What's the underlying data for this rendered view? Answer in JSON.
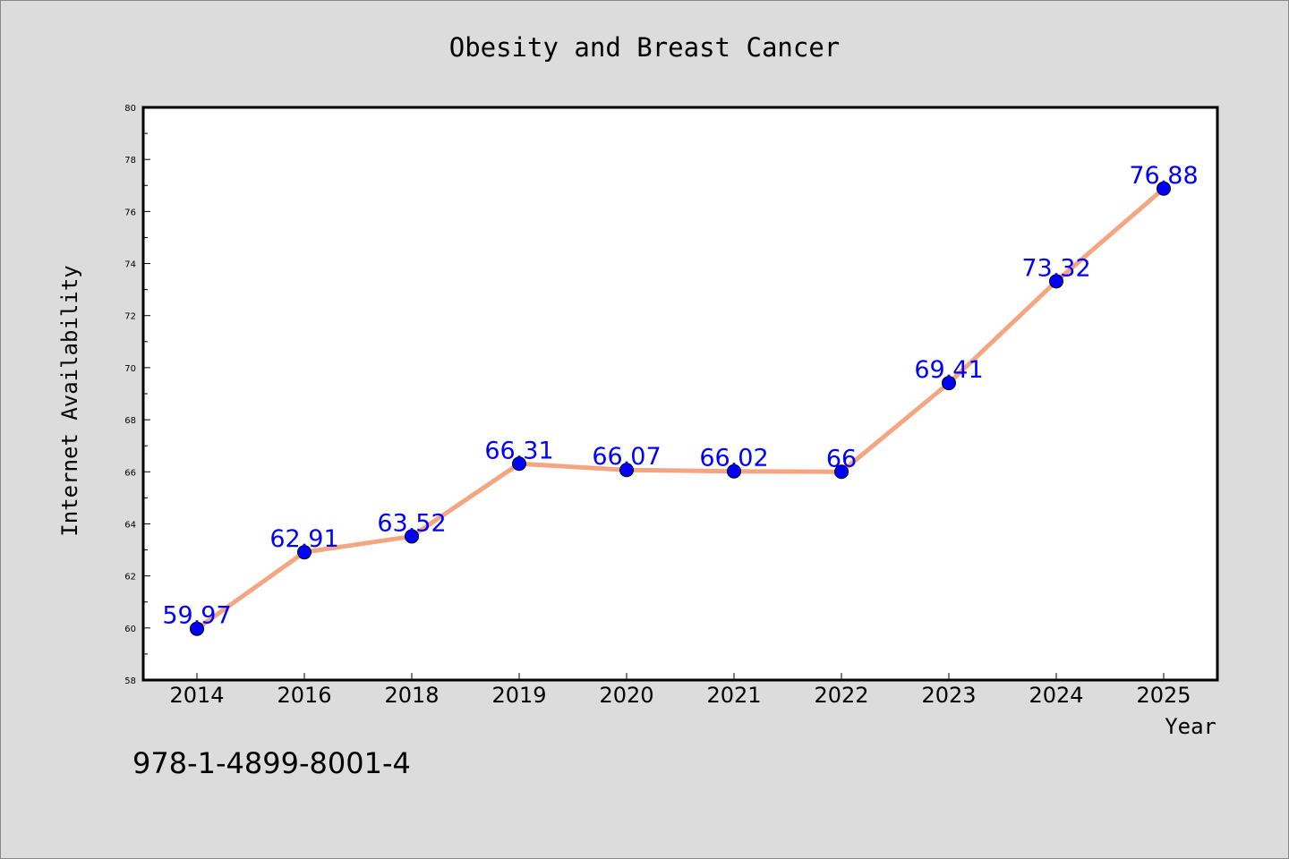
{
  "chart_data": {
    "type": "line",
    "title": "Obesity and Breast Cancer",
    "xlabel": "Year",
    "ylabel": "Internet Availability",
    "categories": [
      "2014",
      "2016",
      "2018",
      "2019",
      "2020",
      "2021",
      "2022",
      "2023",
      "2024",
      "2025"
    ],
    "series": [
      {
        "values": [
          59.97,
          62.91,
          63.52,
          66.31,
          66.07,
          66.02,
          66,
          69.41,
          73.32,
          76.88
        ],
        "labels": [
          "59.97",
          "62.91",
          "63.52",
          "66.31",
          "66.07",
          "66.02",
          "66",
          "69.41",
          "73.32",
          "76.88"
        ]
      }
    ],
    "ylim": [
      58,
      80
    ],
    "yticks": [
      "58",
      "60",
      "62",
      "64",
      "66",
      "68",
      "70",
      "72",
      "74",
      "76",
      "78",
      "80"
    ],
    "grid": false,
    "legend": "none",
    "annotation": "978-1-4899-8001-4"
  },
  "colors": {
    "background": "#dcdcdc",
    "plot_area": "#ffffff",
    "line": "#f4a582",
    "marker": "#0000ff",
    "data_label": "#0000ff",
    "text": "#000000"
  }
}
